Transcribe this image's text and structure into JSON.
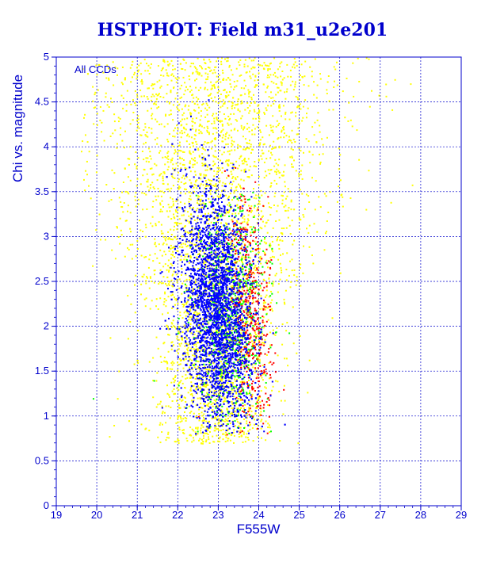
{
  "chart_data": {
    "type": "scatter",
    "title": "HSTPHOT: Field m31_u2e201",
    "xlabel": "F555W",
    "ylabel": "Chi vs. magnitude",
    "annotation": "All CCDs",
    "xlim": [
      19,
      29
    ],
    "ylim": [
      0,
      5
    ],
    "xticks": [
      "19",
      "20",
      "21",
      "22",
      "23",
      "24",
      "25",
      "26",
      "27",
      "28",
      "29"
    ],
    "yticks": [
      "0",
      "0.5",
      "1",
      "1.5",
      "2",
      "2.5",
      "3",
      "3.5",
      "4",
      "4.5",
      "5"
    ],
    "grid": true,
    "legend": "none",
    "series": [
      {
        "color": "#ffff00",
        "description_points": [
          [
            22.4,
            4.9
          ],
          [
            22.8,
            4.6
          ],
          [
            23.1,
            4.2
          ],
          [
            23.5,
            3.8
          ],
          [
            24.0,
            3.4
          ],
          [
            24.6,
            3.1
          ],
          [
            25.3,
            2.8
          ],
          [
            26.0,
            2.6
          ],
          [
            21.7,
            3.0
          ],
          [
            21.5,
            2.2
          ],
          [
            21.0,
            1.6
          ],
          [
            20.5,
            1.2
          ],
          [
            22.0,
            1.3
          ],
          [
            23.4,
            0.9
          ],
          [
            24.4,
            1.4
          ],
          [
            25.0,
            1.9
          ],
          [
            25.8,
            2.1
          ],
          [
            22.6,
            0.7
          ],
          [
            24.8,
            3.9
          ],
          [
            23.9,
            4.8
          ]
        ]
      },
      {
        "color": "#00ff00",
        "description_points": [
          [
            23.8,
            2.1
          ],
          [
            24.0,
            1.6
          ],
          [
            23.6,
            1.3
          ],
          [
            22.2,
            1.1
          ],
          [
            23.3,
            2.8
          ],
          [
            23.9,
            2.5
          ],
          [
            21.4,
            1.4
          ],
          [
            19.9,
            1.2
          ],
          [
            24.2,
            1.2
          ],
          [
            23.1,
            1.0
          ]
        ]
      },
      {
        "color": "#ff0000",
        "description_points": [
          [
            23.9,
            2.8
          ],
          [
            24.1,
            2.2
          ],
          [
            24.3,
            1.8
          ],
          [
            24.4,
            1.5
          ],
          [
            24.1,
            1.1
          ],
          [
            23.2,
            0.8
          ],
          [
            23.7,
            3.3
          ],
          [
            24.6,
            1.3
          ],
          [
            22.5,
            1.0
          ],
          [
            24.0,
            2.6
          ]
        ]
      },
      {
        "color": "#0000ff",
        "description_points": [
          [
            22.5,
            2.4
          ],
          [
            22.8,
            2.1
          ],
          [
            23.0,
            1.8
          ],
          [
            23.2,
            1.5
          ],
          [
            22.7,
            3.0
          ],
          [
            22.9,
            3.5
          ],
          [
            22.6,
            1.2
          ],
          [
            23.3,
            2.5
          ],
          [
            22.3,
            4.2
          ],
          [
            23.4,
            1.2
          ],
          [
            22.1,
            2.0
          ],
          [
            23.1,
            1.0
          ],
          [
            21.6,
            1.1
          ],
          [
            22.9,
            0.9
          ],
          [
            23.6,
            1.9
          ]
        ]
      }
    ]
  }
}
